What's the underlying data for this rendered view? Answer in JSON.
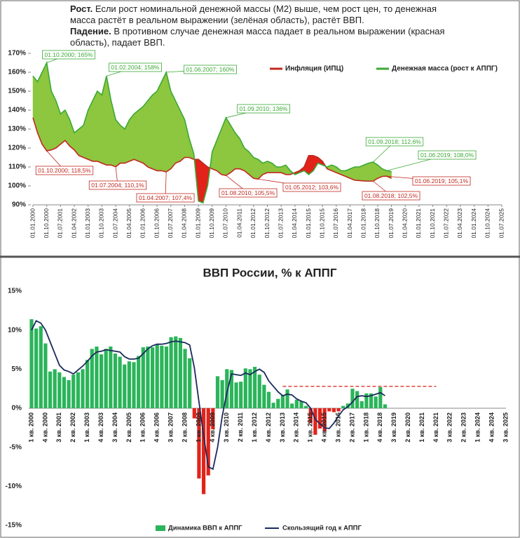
{
  "intro": {
    "growth_label": "Рост.",
    "growth_text": "Если рост номинальной денежной массы (М2) выше, чем рост цен,  то денежная масса растёт в реальном выражении (зелёная область), растёт ВВП.",
    "decline_label": "Падение.",
    "decline_text": "В противном случае денежная масса падает в реальном выражении (красная область), падает ВВП."
  },
  "chart_data": [
    {
      "type": "line",
      "categories": [
        "01.01.2000",
        null,
        null,
        "01.10.2000",
        null,
        null,
        "01.07.2001",
        null,
        null,
        "01.04.2002",
        null,
        null,
        "01.01.2003",
        null,
        null,
        "01.10.2003",
        null,
        null,
        "01.07.2004",
        null,
        null,
        "01.04.2005",
        null,
        null,
        "01.01.2006",
        null,
        null,
        "01.10.2006",
        null,
        null,
        "01.07.2007",
        null,
        null,
        "01.04.2008",
        null,
        null,
        "01.01.2009",
        null,
        null,
        "01.10.2009",
        null,
        null,
        "01.07.2010",
        null,
        null,
        "01.04.2011",
        null,
        null,
        "01.01.2012",
        null,
        null,
        "01.10.2012",
        null,
        null,
        "01.07.2013",
        null,
        null,
        "01.04.2014",
        null,
        null,
        "01.01.2015",
        null,
        null,
        "01.10.2015",
        null,
        null,
        "01.07.2016",
        null,
        null,
        "01.04.2017",
        null,
        null,
        "01.01.2018",
        null,
        null,
        "01.10.2018",
        null,
        null,
        "01.07.2019",
        null,
        null,
        "01.04.2020",
        null,
        null,
        "01.01.2021",
        null,
        null,
        "01.10.2021",
        null,
        null,
        "01.07.2022",
        null,
        null,
        "01.04.2023",
        null,
        null,
        "01.01.2024",
        null,
        null,
        "01.10.2024",
        null,
        null,
        "01.07.2025"
      ],
      "series": [
        {
          "name": "Инфляция (ИПЦ)",
          "color": "#c0281e",
          "values": [
            136,
            128,
            122,
            118.5,
            119,
            120,
            122,
            124,
            121,
            119,
            116,
            115,
            114,
            113,
            113,
            112,
            111,
            111,
            110.1,
            112,
            112,
            113,
            114,
            113,
            112,
            110,
            109,
            108,
            108,
            107.4,
            109,
            112,
            113,
            115,
            115,
            114,
            114,
            112,
            110,
            109,
            108,
            106,
            105.5,
            107,
            109,
            109,
            108,
            106,
            104,
            103.6,
            106,
            107,
            107,
            107,
            107,
            106,
            106,
            107,
            108,
            110,
            116,
            116,
            115,
            113,
            109,
            108,
            107,
            106,
            105,
            104,
            103,
            102.8,
            102.6,
            102.5,
            102.5,
            104,
            105,
            105.1,
            104,
            null,
            null,
            null,
            null,
            null,
            null,
            null,
            null,
            null,
            null,
            null,
            null,
            null,
            null,
            null,
            null,
            null,
            null,
            null,
            null,
            null,
            null,
            null,
            null
          ],
          "annotations": [
            "01.10.2000; 118,5%",
            "01.07.2004; 110,1%",
            "01.04.2007; 107,4%",
            "01.08.2010; 105,5%",
            "01.05.2012; 103,6%",
            "01.08.2018; 102,5%",
            "01.06.2019; 105,1%"
          ]
        },
        {
          "name": "Денежная масса (рост к АППГ)",
          "color": "#3aa935",
          "values": [
            158,
            155,
            160,
            165,
            150,
            145,
            138,
            140,
            135,
            128,
            130,
            132,
            140,
            145,
            150,
            148,
            158,
            145,
            135,
            132,
            130,
            135,
            138,
            140,
            142,
            145,
            148,
            150,
            155,
            160,
            150,
            145,
            140,
            135,
            125,
            117,
            92,
            91,
            100,
            118,
            124,
            130,
            136,
            132,
            128,
            125,
            120,
            118,
            115,
            114,
            112,
            113,
            112,
            110,
            110,
            111,
            108,
            106,
            107,
            108,
            106,
            108,
            112,
            111,
            110,
            111,
            110,
            108,
            108,
            109,
            110,
            110,
            111,
            112,
            112.6,
            111,
            109,
            108,
            107.5,
            null,
            null,
            null,
            null,
            null,
            null,
            null,
            null,
            null,
            null,
            null,
            null,
            null,
            null,
            null,
            null,
            null,
            null,
            null,
            null,
            null,
            null,
            null,
            null
          ],
          "annotations": [
            "01.10.2000; 165%",
            "01.02.2004; 158%",
            "01.06.2007; 160%",
            "01.09.2010; 136%",
            "01.09.2018; 112,6%",
            "01.06.2019; 108,0%"
          ]
        }
      ],
      "fill_above": "#8dc63f",
      "fill_below": "#e2231a",
      "ylim": [
        90,
        170
      ],
      "yticks": [
        {
          "value": 90,
          "label": "90%"
        },
        {
          "value": 100,
          "label": "100%"
        },
        {
          "value": 110,
          "label": "110%"
        },
        {
          "value": 120,
          "label": "120%"
        },
        {
          "value": 130,
          "label": "130%"
        },
        {
          "value": 140,
          "label": "140%"
        },
        {
          "value": 150,
          "label": "150%"
        },
        {
          "value": 160,
          "label": "160%"
        },
        {
          "value": 170,
          "label": "170%"
        }
      ],
      "grid": false
    },
    {
      "type": "bar",
      "title": "ВВП России, % к АППГ",
      "categories": [
        "1 кв. 2000",
        null,
        null,
        "4 кв. 2000",
        null,
        null,
        "3 кв. 2001",
        null,
        null,
        "2 кв. 2002",
        null,
        null,
        "1 кв. 2003",
        null,
        null,
        "4 кв. 2003",
        null,
        null,
        "3 кв. 2004",
        null,
        null,
        "2 кв. 2005",
        null,
        null,
        "1 кв. 2006",
        null,
        null,
        "4 кв. 2006",
        null,
        null,
        "3 кв. 2007",
        null,
        null,
        "2 кв. 2008",
        null,
        null,
        "1 кв. 2009",
        null,
        null,
        "4 кв. 2009",
        null,
        null,
        "3 кв. 2010",
        null,
        null,
        "2 кв. 2011",
        null,
        null,
        "1 кв. 2012",
        null,
        null,
        "4 кв. 2012",
        null,
        null,
        "3 кв. 2013",
        null,
        null,
        "2 кв. 2014",
        null,
        null,
        "1 кв. 2015",
        null,
        null,
        "4 кв. 2015",
        null,
        null,
        "3 кв. 2016",
        null,
        null,
        "2 кв. 2017",
        null,
        null,
        "1 кв. 2018",
        null,
        null,
        "4 кв. 2018",
        null,
        null,
        "3 кв. 2019",
        null,
        null,
        "2 кв. 2020",
        null,
        null,
        "1 кв. 2021",
        null,
        null,
        "4 кв. 2021",
        null,
        null,
        "3 кв. 2022",
        null,
        null,
        "2 кв. 2023",
        null,
        null,
        "1 кв. 2024",
        null,
        null,
        "4 кв. 2024",
        null,
        null,
        "3 кв. 2025"
      ],
      "series": [
        {
          "name": "Динамика ВВП к АППГ",
          "color": "#2bb45a",
          "negative_color": "#e2231a",
          "values": [
            11.4,
            10.2,
            10.5,
            8.3,
            4.7,
            5.0,
            4.6,
            4.0,
            3.6,
            4.3,
            4.6,
            5.0,
            6.2,
            7.6,
            7.9,
            6.9,
            7.6,
            7.9,
            7.0,
            6.6,
            5.6,
            6.0,
            5.9,
            6.7,
            7.8,
            7.9,
            7.8,
            8.2,
            8.0,
            7.9,
            9.1,
            9.2,
            9.0,
            7.6,
            6.4,
            -1.3,
            -9.0,
            -11.0,
            -8.6,
            -2.7,
            4.1,
            3.6,
            5.0,
            4.9,
            3.3,
            3.4,
            5.1,
            5.0,
            5.3,
            4.3,
            3.0,
            2.1,
            0.7,
            1.2,
            1.7,
            2.4,
            0.6,
            1.1,
            0.9,
            0.3,
            -1.9,
            -3.4,
            -2.6,
            -3.0,
            -0.4,
            -0.5,
            -0.4,
            0.3,
            0.6,
            2.5,
            2.2,
            0.9,
            1.9,
            1.9,
            1.5,
            2.7,
            0.5,
            null,
            null,
            null,
            null,
            null,
            null,
            null,
            null,
            null,
            null,
            null,
            null,
            null,
            null,
            null,
            null,
            null,
            null,
            null,
            null,
            null,
            null,
            null,
            null,
            null,
            null
          ]
        },
        {
          "name": "Скользящий год к АППГ",
          "color": "#1a2a5c",
          "type": "line",
          "values": [
            10.0,
            11.2,
            10.9,
            10.0,
            8.5,
            7.0,
            5.5,
            4.9,
            4.7,
            4.4,
            4.9,
            5.4,
            6.0,
            6.7,
            7.2,
            7.3,
            7.5,
            7.4,
            7.3,
            7.2,
            6.6,
            6.3,
            6.3,
            6.4,
            7.0,
            7.6,
            8.0,
            8.2,
            8.2,
            8.3,
            8.5,
            8.6,
            8.5,
            8.4,
            8.1,
            5.2,
            0.8,
            -3.5,
            -7.5,
            -7.8,
            -5.0,
            -1.0,
            2.0,
            4.4,
            4.3,
            4.2,
            4.5,
            4.3,
            4.7,
            5.0,
            4.6,
            3.5,
            2.8,
            2.1,
            1.6,
            1.8,
            1.7,
            1.2,
            0.9,
            0.7,
            0.0,
            -1.4,
            -2.0,
            -2.5,
            -2.6,
            -1.9,
            -1.0,
            -0.2,
            0.2,
            0.8,
            1.5,
            1.6,
            1.5,
            1.6,
            1.8,
            2.0,
            1.6,
            null,
            null,
            null,
            null,
            null,
            null,
            null,
            null,
            null,
            null,
            null,
            null,
            null,
            null,
            null,
            null,
            null,
            null,
            null,
            null,
            null,
            null,
            null,
            null,
            null,
            null
          ]
        }
      ],
      "reference_line": {
        "value": 2.8,
        "color": "#d9342b"
      },
      "ylim": [
        -15,
        15
      ],
      "yticks": [
        {
          "value": -15,
          "label": "-15%"
        },
        {
          "value": -10,
          "label": "-10%"
        },
        {
          "value": -5,
          "label": "-5%"
        },
        {
          "value": 0,
          "label": "0%"
        },
        {
          "value": 5,
          "label": "5%"
        },
        {
          "value": 10,
          "label": "10%"
        },
        {
          "value": 15,
          "label": "15%"
        }
      ],
      "grid": false
    }
  ]
}
